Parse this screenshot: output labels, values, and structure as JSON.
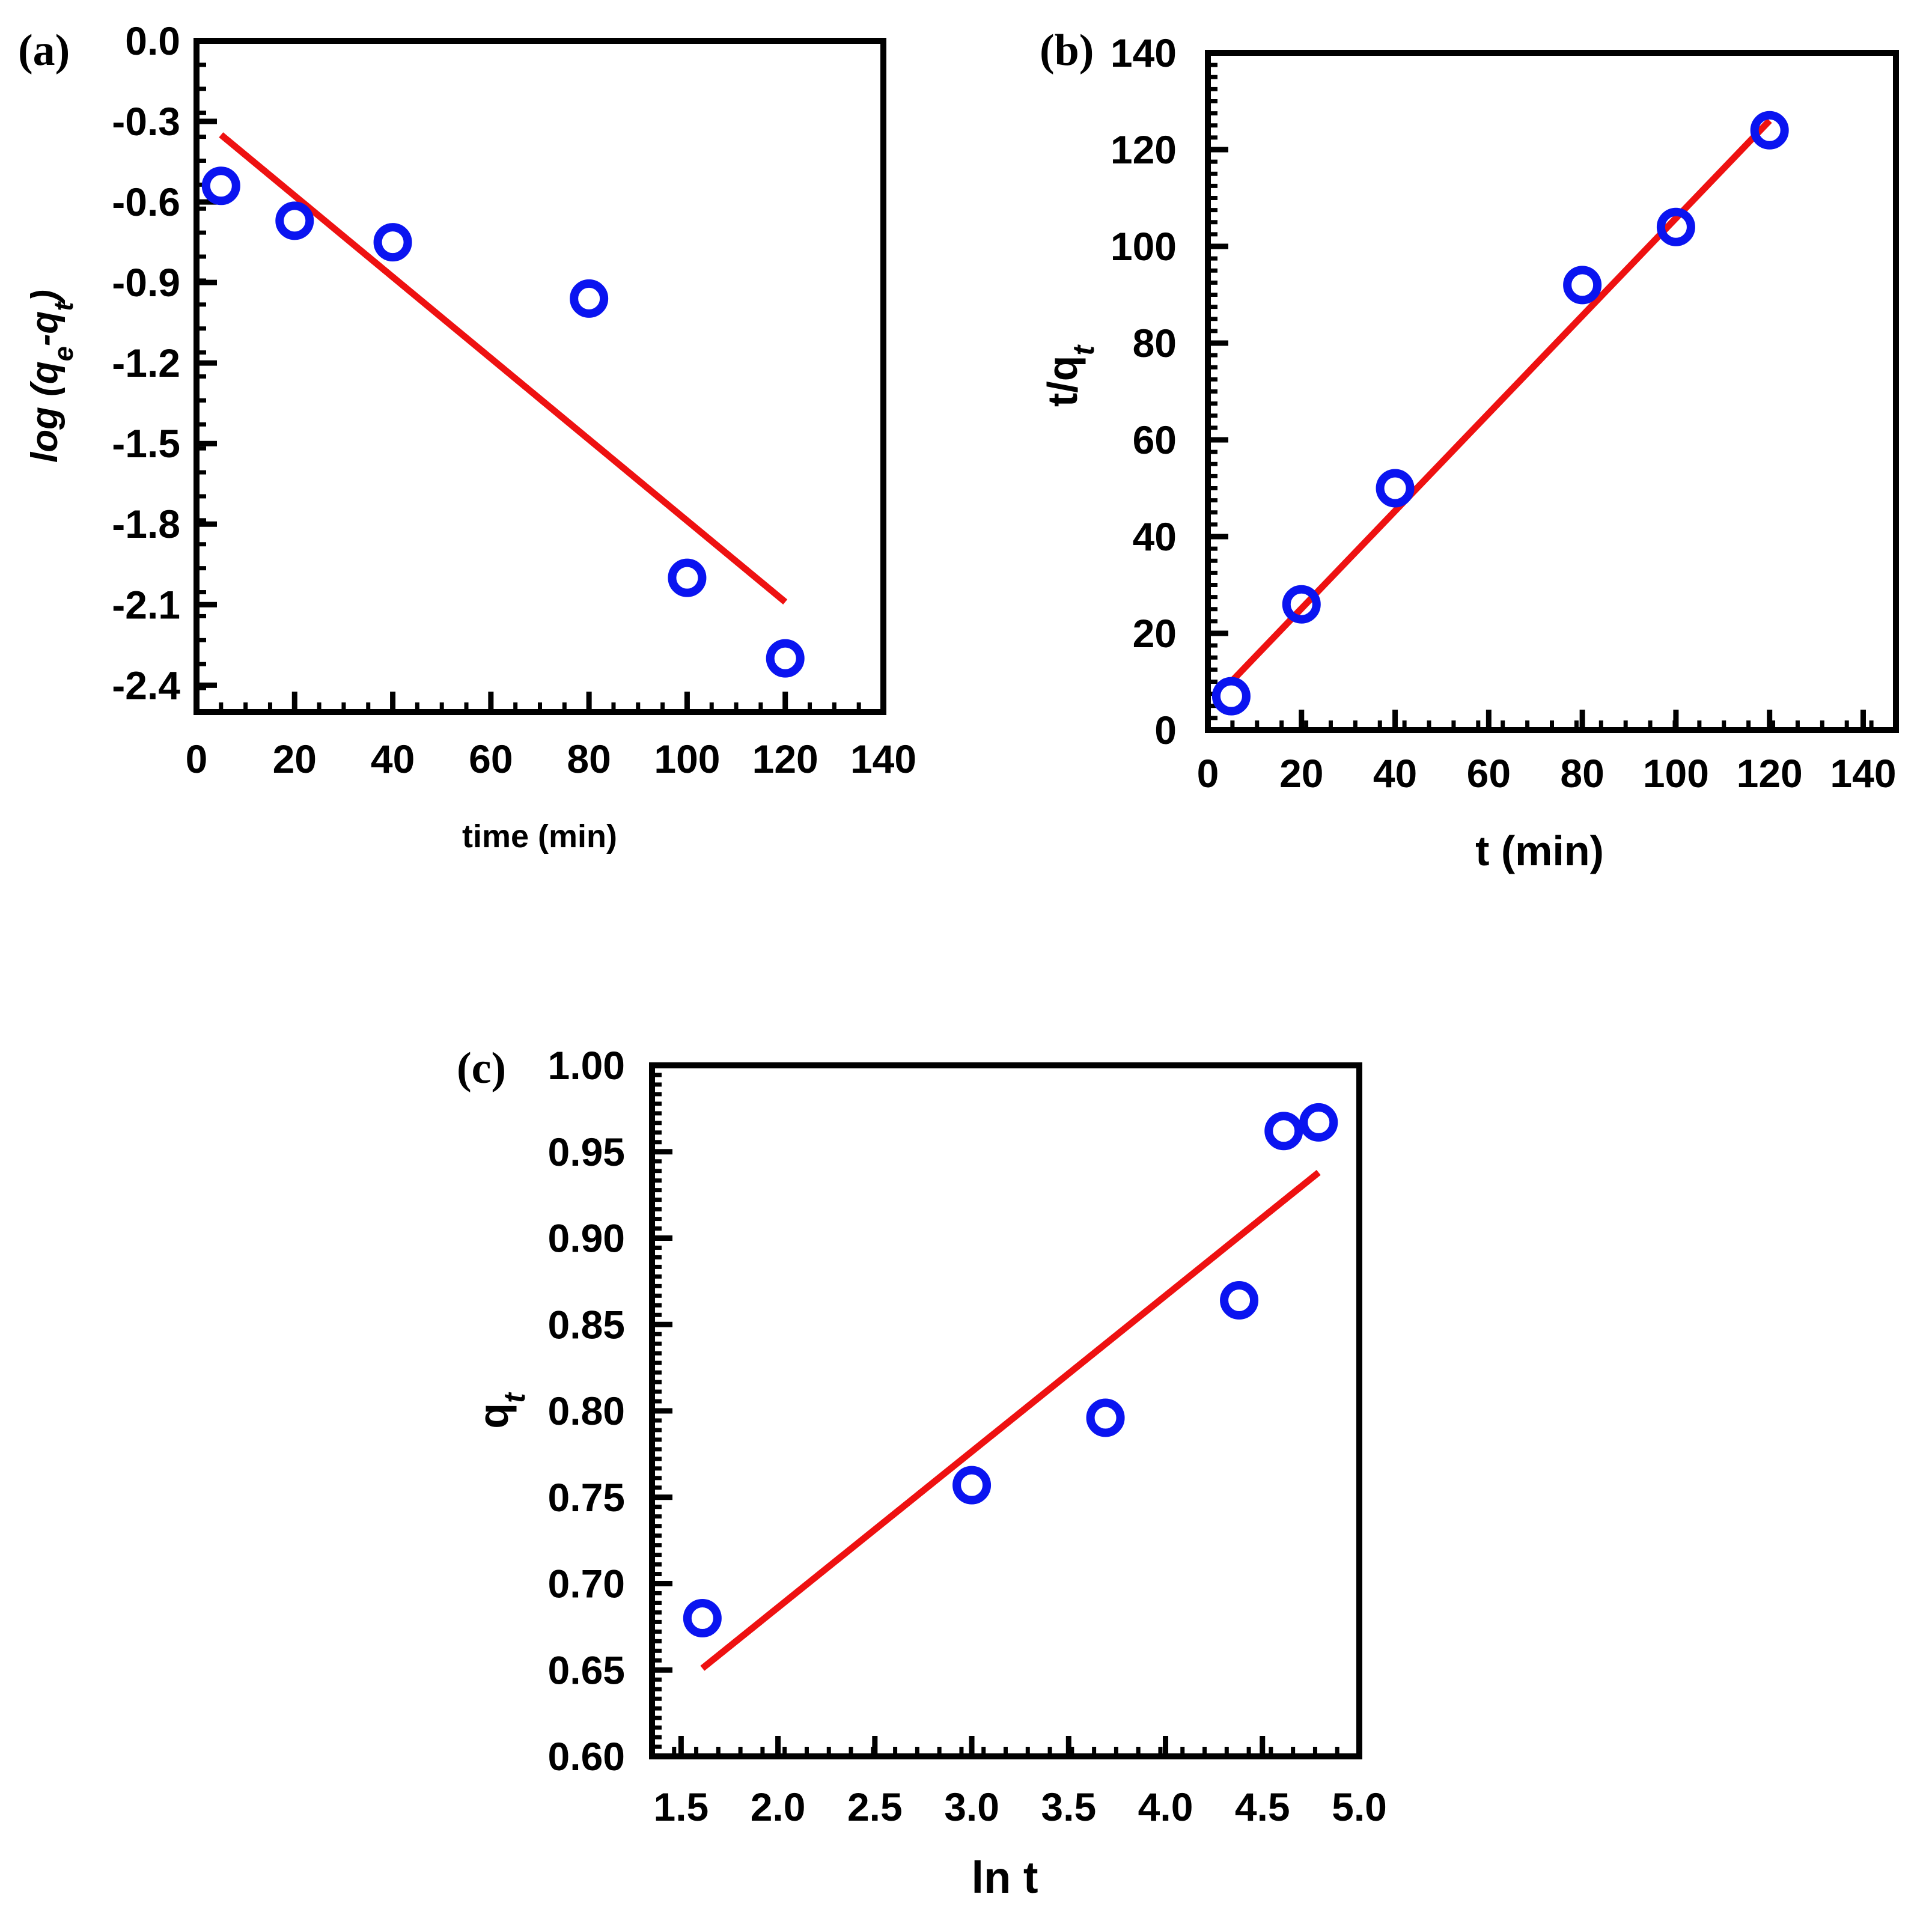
{
  "chart_data": [
    {
      "id": "a",
      "type": "scatter",
      "panel_label": "(a)",
      "xlabel": "time (min)",
      "ylabel": {
        "prefix": "log (q",
        "sub1": "e",
        "mid": "-q",
        "sub2": "t",
        "suffix": ")"
      },
      "xlim": [
        0,
        140
      ],
      "ylim": [
        -2.5,
        0
      ],
      "xticks": [
        0,
        20,
        40,
        60,
        80,
        100,
        120,
        140
      ],
      "xtick_labels": [
        "0",
        "20",
        "40",
        "60",
        "80",
        "100",
        "120",
        "140"
      ],
      "yticks": [
        0,
        -0.3,
        -0.6,
        -0.9,
        -1.2,
        -1.5,
        -1.8,
        -2.1,
        -2.4
      ],
      "ytick_labels": [
        "0.0",
        "-0.3",
        "-0.6",
        "-0.9",
        "-1.2",
        "-1.5",
        "-1.8",
        "-2.1",
        "-2.4"
      ],
      "points": [
        {
          "x": 5,
          "y": -0.54
        },
        {
          "x": 20,
          "y": -0.67
        },
        {
          "x": 40,
          "y": -0.75
        },
        {
          "x": 80,
          "y": -0.96
        },
        {
          "x": 100,
          "y": -2.0
        },
        {
          "x": 120,
          "y": -2.3
        }
      ],
      "fit_line": {
        "x": [
          5,
          120
        ],
        "y": [
          -0.35,
          -2.09
        ]
      }
    },
    {
      "id": "b",
      "type": "scatter",
      "panel_label": "(b)",
      "xlabel": "t (min)",
      "ylabel": {
        "prefix": "t/q",
        "sub1": "t",
        "mid": "",
        "sub2": "",
        "suffix": ""
      },
      "xlim": [
        0,
        147
      ],
      "ylim": [
        0,
        140
      ],
      "xticks": [
        0,
        20,
        40,
        60,
        80,
        100,
        120,
        140
      ],
      "xtick_labels": [
        "0",
        "20",
        "40",
        "60",
        "80",
        "100",
        "120",
        "140"
      ],
      "yticks": [
        0,
        20,
        40,
        60,
        80,
        100,
        120,
        140
      ],
      "ytick_labels": [
        "0",
        "20",
        "40",
        "60",
        "80",
        "100",
        "120",
        "140"
      ],
      "points": [
        {
          "x": 5,
          "y": 7
        },
        {
          "x": 20,
          "y": 26
        },
        {
          "x": 40,
          "y": 50
        },
        {
          "x": 80,
          "y": 92
        },
        {
          "x": 100,
          "y": 104
        },
        {
          "x": 120,
          "y": 124
        }
      ],
      "fit_line": {
        "x": [
          5,
          120
        ],
        "y": [
          10,
          126
        ]
      }
    },
    {
      "id": "c",
      "type": "scatter",
      "panel_label": "(c)",
      "xlabel": "ln t",
      "ylabel": {
        "prefix": "q",
        "sub1": "t",
        "mid": "",
        "sub2": "",
        "suffix": ""
      },
      "xlim": [
        1.35,
        5.0
      ],
      "ylim": [
        0.6,
        1.0
      ],
      "xticks": [
        1.5,
        2.0,
        2.5,
        3.0,
        3.5,
        4.0,
        4.5,
        5.0
      ],
      "xtick_labels": [
        "1.5",
        "2.0",
        "2.5",
        "3.0",
        "3.5",
        "4.0",
        "4.5",
        "5.0"
      ],
      "yticks": [
        0.6,
        0.65,
        0.7,
        0.75,
        0.8,
        0.85,
        0.9,
        0.95,
        1.0
      ],
      "ytick_labels": [
        "0.60",
        "0.65",
        "0.70",
        "0.75",
        "0.80",
        "0.85",
        "0.90",
        "0.95",
        "1.00"
      ],
      "points": [
        {
          "x": 1.61,
          "y": 0.68
        },
        {
          "x": 3.0,
          "y": 0.757
        },
        {
          "x": 3.69,
          "y": 0.796
        },
        {
          "x": 4.38,
          "y": 0.864
        },
        {
          "x": 4.61,
          "y": 0.962
        },
        {
          "x": 4.79,
          "y": 0.967
        }
      ],
      "fit_line": {
        "x": [
          1.61,
          4.79
        ],
        "y": [
          0.651,
          0.938
        ]
      }
    }
  ],
  "colors": {
    "marker": "#0a14f0",
    "fit": "#ee1111",
    "axis": "#000000"
  }
}
